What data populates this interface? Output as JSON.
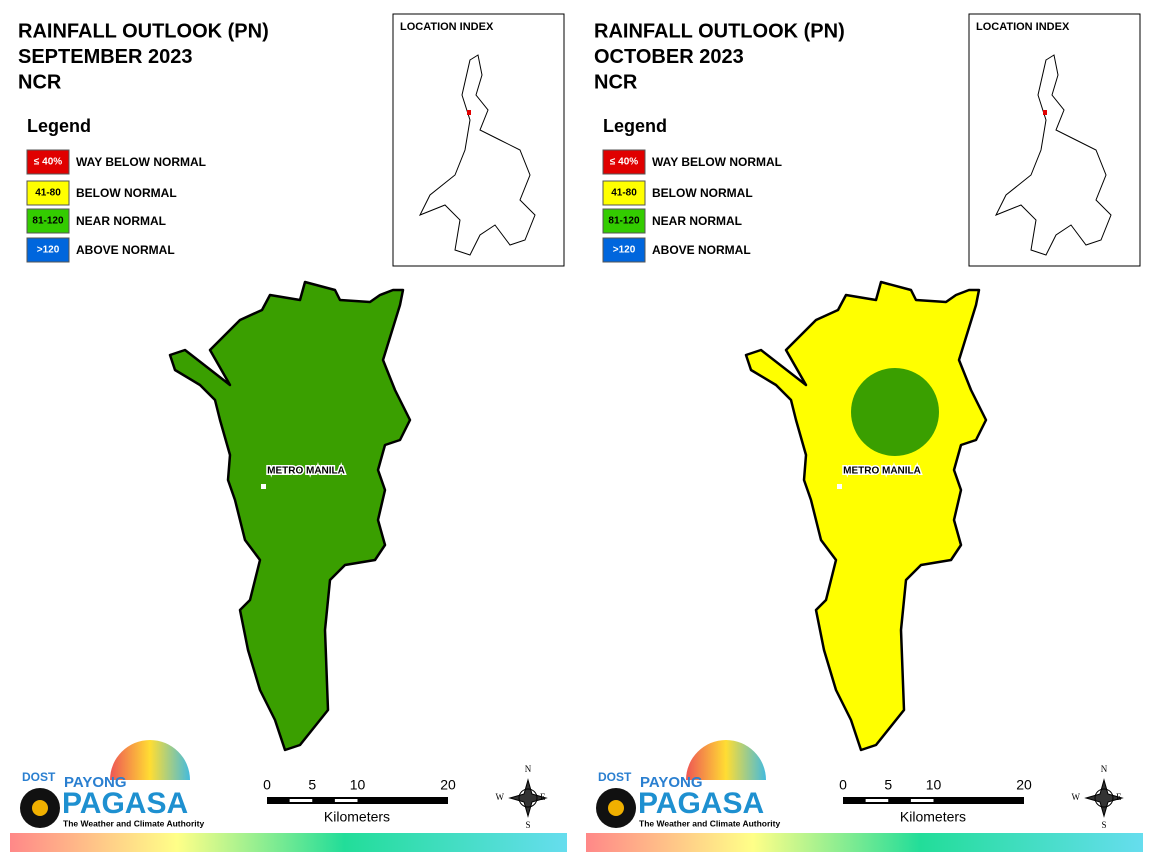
{
  "panels": [
    {
      "title_lines": [
        "RAINFALL OUTLOOK (PN)",
        "SEPTEMBER 2023",
        "NCR"
      ],
      "legend": {
        "title": "Legend",
        "items": [
          {
            "label": "≤ 40%",
            "text": "WAY BELOW NORMAL"
          },
          {
            "label": "41-80",
            "text": "BELOW NORMAL"
          },
          {
            "label": "81-120",
            "text": "NEAR NORMAL"
          },
          {
            "label": ">120",
            "text": "ABOVE NORMAL"
          }
        ]
      },
      "location_index": "LOCATION INDEX",
      "map_label": "METRO MANILA",
      "scale": {
        "ticks": [
          0,
          5,
          10,
          20
        ],
        "unit": "Kilometers"
      },
      "compass": [
        "N",
        "E",
        "S",
        "W"
      ],
      "logo": {
        "agency": "DOST",
        "brand_top": "PAYONG",
        "brand": "PAGASA",
        "tagline": "The Weather and Climate Authority"
      }
    },
    {
      "title_lines": [
        "RAINFALL OUTLOOK (PN)",
        "OCTOBER 2023",
        "NCR"
      ],
      "legend": {
        "title": "Legend",
        "items": [
          {
            "label": "≤ 40%",
            "text": "WAY BELOW NORMAL"
          },
          {
            "label": "41-80",
            "text": "BELOW NORMAL"
          },
          {
            "label": "81-120",
            "text": "NEAR NORMAL"
          },
          {
            "label": ">120",
            "text": "ABOVE NORMAL"
          }
        ]
      },
      "location_index": "LOCATION INDEX",
      "map_label": "METRO MANILA",
      "scale": {
        "ticks": [
          0,
          5,
          10,
          20
        ],
        "unit": "Kilometers"
      },
      "compass": [
        "N",
        "E",
        "S",
        "W"
      ],
      "logo": {
        "agency": "DOST",
        "brand_top": "PAYONG",
        "brand": "PAGASA",
        "tagline": "The Weather and Climate Authority"
      }
    }
  ]
}
